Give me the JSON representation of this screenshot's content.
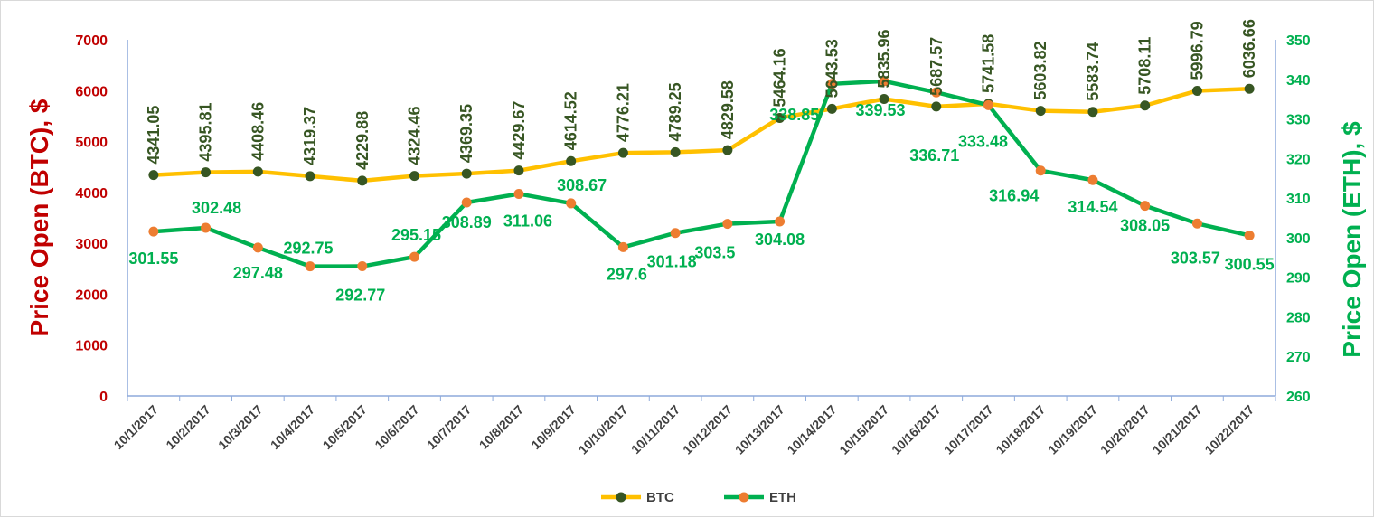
{
  "chart_data": {
    "type": "line",
    "categories": [
      "10/1/2017",
      "10/2/2017",
      "10/3/2017",
      "10/4/2017",
      "10/5/2017",
      "10/6/2017",
      "10/7/2017",
      "10/8/2017",
      "10/9/2017",
      "10/10/2017",
      "10/11/2017",
      "10/12/2017",
      "10/13/2017",
      "10/14/2017",
      "10/15/2017",
      "10/16/2017",
      "10/17/2017",
      "10/18/2017",
      "10/19/2017",
      "10/20/2017",
      "10/21/2017",
      "10/22/2017"
    ],
    "series": [
      {
        "name": "BTC",
        "axis": "left",
        "values": [
          4341.05,
          4395.81,
          4408.46,
          4319.37,
          4229.88,
          4324.46,
          4369.35,
          4429.67,
          4614.52,
          4776.21,
          4789.25,
          4829.58,
          5464.16,
          5643.53,
          5835.96,
          5687.57,
          5741.58,
          5603.82,
          5583.74,
          5708.11,
          5996.79,
          6036.66
        ],
        "labels": [
          "4341.05",
          "4395.81",
          "4408.46",
          "4319.37",
          "4229.88",
          "4324.46",
          "4369.35",
          "4429.67",
          "4614.52",
          "4776.21",
          "4789.25",
          "4829.58",
          "5464.16",
          "5643.53",
          "5835.96",
          "5687.57",
          "5741.58",
          "5603.82",
          "5583.74",
          "5708.11",
          "5996.79",
          "6036.66"
        ],
        "line_color": "#ffc000",
        "marker_color": "#375623"
      },
      {
        "name": "ETH",
        "axis": "right",
        "values": [
          301.55,
          302.48,
          297.48,
          292.75,
          292.77,
          295.15,
          308.89,
          311.06,
          308.67,
          297.6,
          301.18,
          303.5,
          304.08,
          338.85,
          339.53,
          336.71,
          333.48,
          316.94,
          314.54,
          308.05,
          303.57,
          300.55
        ],
        "labels": [
          "301.55",
          "302.48",
          "297.48",
          "292.75",
          "292.77",
          "295.15",
          "308.89",
          "311.06",
          "308.67",
          "297.6",
          "301.18",
          "303.5",
          "304.08",
          "338.85",
          "339.53",
          "336.71",
          "333.48",
          "316.94",
          "314.54",
          "308.05",
          "303.57",
          "300.55"
        ],
        "line_color": "#00b050",
        "marker_color": "#ed7d31"
      }
    ],
    "y_left": {
      "label": "Price Open (BTC), $",
      "ylim": [
        0,
        7000
      ],
      "ticks": [
        "0",
        "1000",
        "2000",
        "3000",
        "4000",
        "5000",
        "6000",
        "7000"
      ],
      "color": "#c00000"
    },
    "y_right": {
      "label": "Price Open (ETH), $",
      "ylim": [
        260,
        350
      ],
      "ticks": [
        "260",
        "270",
        "280",
        "290",
        "300",
        "310",
        "320",
        "330",
        "340",
        "350"
      ],
      "color": "#00b050"
    },
    "legend_position": "bottom",
    "grid": false
  }
}
